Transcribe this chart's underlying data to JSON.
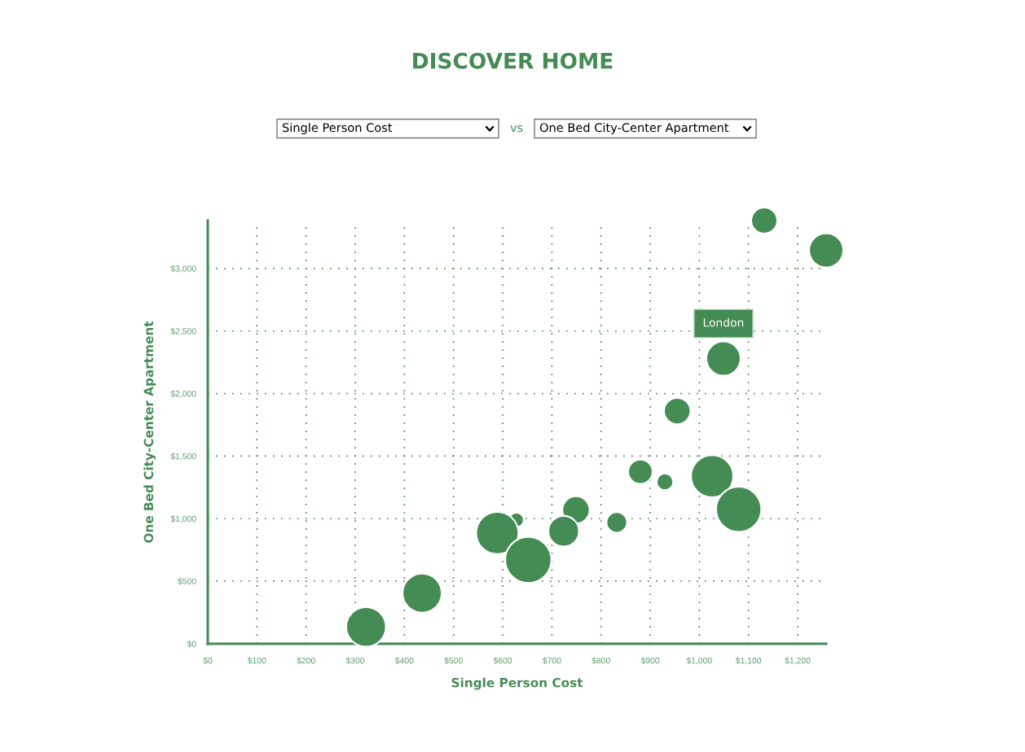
{
  "chart_data": {
    "type": "bubble",
    "title": "DISCOVER HOME",
    "xlabel": "Single Person Cost",
    "ylabel": "One Bed City-Center Apartment",
    "annotations": [
      "Single Person Cost",
      "vs",
      "One Bed City-Center Apartment",
      {
        "text": "London",
        "x": 1049,
        "y": 2280
      }
    ],
    "x": [
      1132,
      1258,
      1049,
      955,
      880,
      1026,
      930,
      1080,
      749,
      628,
      832,
      724,
      589,
      652,
      436,
      322
    ],
    "series": [
      {
        "color": "#458b54",
        "values": [
          3383,
          3145,
          2280,
          1860,
          1375,
          1340,
          1295,
          1075,
          1070,
          990,
          970,
          900,
          885,
          670,
          405,
          135
        ],
        "sizes": [
          0.32,
          0.55,
          0.55,
          0.33,
          0.28,
          0.84,
          0.13,
          0.96,
          0.35,
          0.1,
          0.2,
          0.44,
          0.84,
          1,
          0.72,
          0.74
        ]
      }
    ],
    "grid": true,
    "xlim": [
      0,
      1258
    ],
    "ylim": [
      0,
      3383
    ],
    "xticks": [
      {
        "value": 0,
        "label": "$0"
      },
      {
        "value": 100,
        "label": "$100"
      },
      {
        "value": 200,
        "label": "$200"
      },
      {
        "value": 300,
        "label": "$300"
      },
      {
        "value": 400,
        "label": "$400"
      },
      {
        "value": 500,
        "label": "$500"
      },
      {
        "value": 600,
        "label": "$600"
      },
      {
        "value": 700,
        "label": "$700"
      },
      {
        "value": 800,
        "label": "$800"
      },
      {
        "value": 900,
        "label": "$900"
      },
      {
        "value": 1000,
        "label": "$1,000"
      },
      {
        "value": 1100,
        "label": "$1,100"
      },
      {
        "value": 1200,
        "label": "$1,200"
      }
    ],
    "yticks": [
      {
        "value": 0,
        "label": "$0"
      },
      {
        "value": 500,
        "label": "$500"
      },
      {
        "value": 1000,
        "label": "$1,000"
      },
      {
        "value": 1500,
        "label": "$1,500"
      },
      {
        "value": 2000,
        "label": "$2,000"
      },
      {
        "value": 2500,
        "label": "$2,500"
      },
      {
        "value": 3000,
        "label": "$3,000"
      }
    ]
  }
}
